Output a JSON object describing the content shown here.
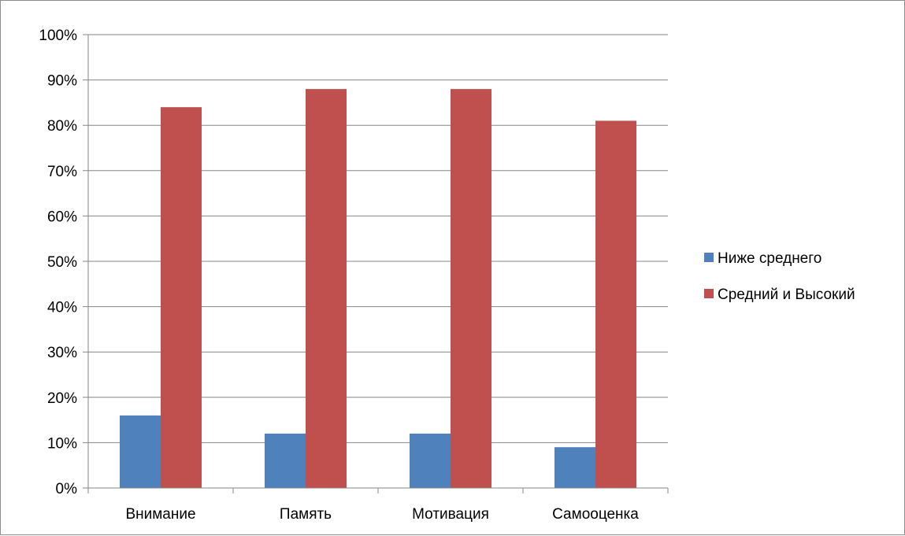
{
  "chart_data": {
    "type": "bar",
    "title": "",
    "xlabel": "",
    "ylabel": "",
    "categories": [
      "Внимание",
      "Память",
      "Мотивация",
      "Самооценка"
    ],
    "series": [
      {
        "name": "Ниже среднего",
        "values": [
          16,
          12,
          12,
          9
        ],
        "color": "#4f81bd"
      },
      {
        "name": "Средний и Высокий",
        "values": [
          84,
          88,
          88,
          81
        ],
        "color": "#c0504d"
      }
    ],
    "y_ticks": [
      "0%",
      "10%",
      "20%",
      "30%",
      "40%",
      "50%",
      "60%",
      "70%",
      "80%",
      "90%",
      "100%"
    ],
    "ylim": [
      0,
      100
    ],
    "grid": true,
    "legend_position": "right",
    "colors": {
      "axis": "#868686",
      "grid": "#868686"
    }
  }
}
